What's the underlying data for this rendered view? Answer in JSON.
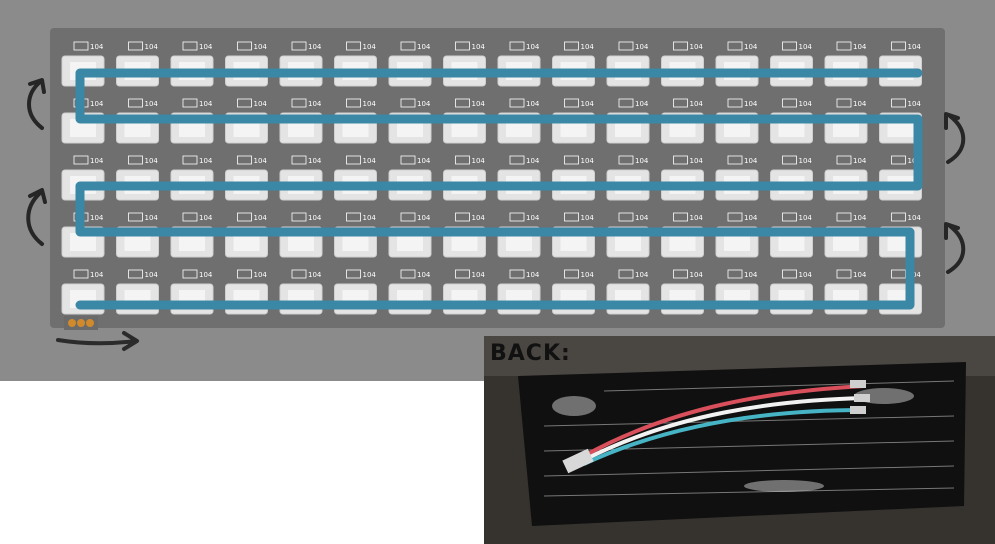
{
  "front": {
    "panel": {
      "rows": 5,
      "cols": 16,
      "capacitor_label": "104"
    },
    "wiring_path": {
      "color": "#3b87a6",
      "start": "bottom-left",
      "direction": "serpentine"
    },
    "direction_arrow": {
      "direction": "right"
    },
    "row_change_arrows": [
      {
        "side": "left",
        "between_rows": [
          1,
          2
        ]
      },
      {
        "side": "left",
        "between_rows": [
          3,
          4
        ]
      },
      {
        "side": "right",
        "between_rows": [
          2,
          3
        ]
      },
      {
        "side": "right",
        "between_rows": [
          4,
          5
        ]
      }
    ]
  },
  "back": {
    "label": "BACK:",
    "wires": [
      {
        "name": "red",
        "color": "#d9505c"
      },
      {
        "name": "white",
        "color": "#f2f2f2"
      },
      {
        "name": "cyan",
        "color": "#46b4c4"
      }
    ]
  }
}
